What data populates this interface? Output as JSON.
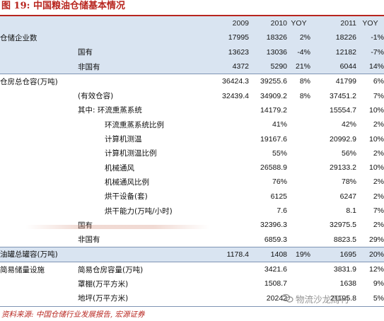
{
  "title": "图 19:  中国粮油仓储基本情况",
  "header": {
    "c2009": "2009",
    "c2010": "2010",
    "yoy1": "YOY",
    "c2011": "2011",
    "yoy2": "YOY"
  },
  "rows": [
    {
      "l1": "仓储企业数",
      "l2": "",
      "v2009": "17995",
      "v2010": "18326",
      "yoy1": "2%",
      "v2011": "18226",
      "yoy2": "-1%"
    },
    {
      "l1": "",
      "l2": "国有",
      "v2009": "13623",
      "v2010": "13036",
      "yoy1": "-4%",
      "v2011": "12182",
      "yoy2": "-7%"
    },
    {
      "l1": "",
      "l2": "非国有",
      "v2009": "4372",
      "v2010": "5290",
      "yoy1": "21%",
      "v2011": "6044",
      "yoy2": "14%"
    },
    {
      "l1": "仓房总仓容(万吨)",
      "l2": "",
      "v2009": "36424.3",
      "v2010": "39255.6",
      "yoy1": "8%",
      "v2011": "41799",
      "yoy2": "6%"
    },
    {
      "l1": "",
      "l2": "(有效仓容)",
      "v2009": "32439.4",
      "v2010": "34909.2",
      "yoy1": "8%",
      "v2011": "37451.2",
      "yoy2": "7%"
    },
    {
      "l1": "",
      "l2": "其中: 环流熏蒸系统",
      "v2009": "",
      "v2010": "14179.2",
      "yoy1": "",
      "v2011": "15554.7",
      "yoy2": "10%"
    },
    {
      "l1": "",
      "l2": "环流熏蒸系统比例",
      "v2009": "",
      "v2010": "41%",
      "yoy1": "",
      "v2011": "42%",
      "yoy2": "2%"
    },
    {
      "l1": "",
      "l2": "计算机测温",
      "v2009": "",
      "v2010": "19167.6",
      "yoy1": "",
      "v2011": "20992.9",
      "yoy2": "10%"
    },
    {
      "l1": "",
      "l2": "计算机测温比例",
      "v2009": "",
      "v2010": "55%",
      "yoy1": "",
      "v2011": "56%",
      "yoy2": "2%"
    },
    {
      "l1": "",
      "l2": "机械通风",
      "v2009": "",
      "v2010": "26588.9",
      "yoy1": "",
      "v2011": "29133.2",
      "yoy2": "10%"
    },
    {
      "l1": "",
      "l2": "机械通风比例",
      "v2009": "",
      "v2010": "76%",
      "yoy1": "",
      "v2011": "78%",
      "yoy2": "2%"
    },
    {
      "l1": "",
      "l2": "烘干设备(套)",
      "v2009": "",
      "v2010": "6125",
      "yoy1": "",
      "v2011": "6247",
      "yoy2": "2%"
    },
    {
      "l1": "",
      "l2": "烘干能力(万吨/小时)",
      "v2009": "",
      "v2010": "7.6",
      "yoy1": "",
      "v2011": "8.1",
      "yoy2": "7%"
    },
    {
      "l1": "",
      "l2": "国有",
      "v2009": "",
      "v2010": "32396.3",
      "yoy1": "",
      "v2011": "32975.5",
      "yoy2": "2%"
    },
    {
      "l1": "",
      "l2": "非国有",
      "v2009": "",
      "v2010": "6859.3",
      "yoy1": "",
      "v2011": "8823.5",
      "yoy2": "29%"
    },
    {
      "l1": "油罐总罐容(万吨)",
      "l2": "",
      "v2009": "1178.4",
      "v2010": "1408",
      "yoy1": "19%",
      "v2011": "1695",
      "yoy2": "20%"
    },
    {
      "l1": "简易储量设施",
      "l2": "简易仓房容量(万吨)",
      "v2009": "",
      "v2010": "3421.6",
      "yoy1": "",
      "v2011": "3831.9",
      "yoy2": "12%"
    },
    {
      "l1": "",
      "l2": "罩棚(万平方米)",
      "v2009": "",
      "v2010": "1508.7",
      "yoy1": "",
      "v2011": "1638",
      "yoy2": "9%"
    },
    {
      "l1": "",
      "l2": "地坪(万平方米)",
      "v2009": "",
      "v2010": "20242",
      "yoy1": "",
      "v2011": "21195.8",
      "yoy2": "5%"
    }
  ],
  "source": "资料来源:  中国仓储行业发展报告, 宏源证券",
  "watermark": "物流沙龙周刊"
}
